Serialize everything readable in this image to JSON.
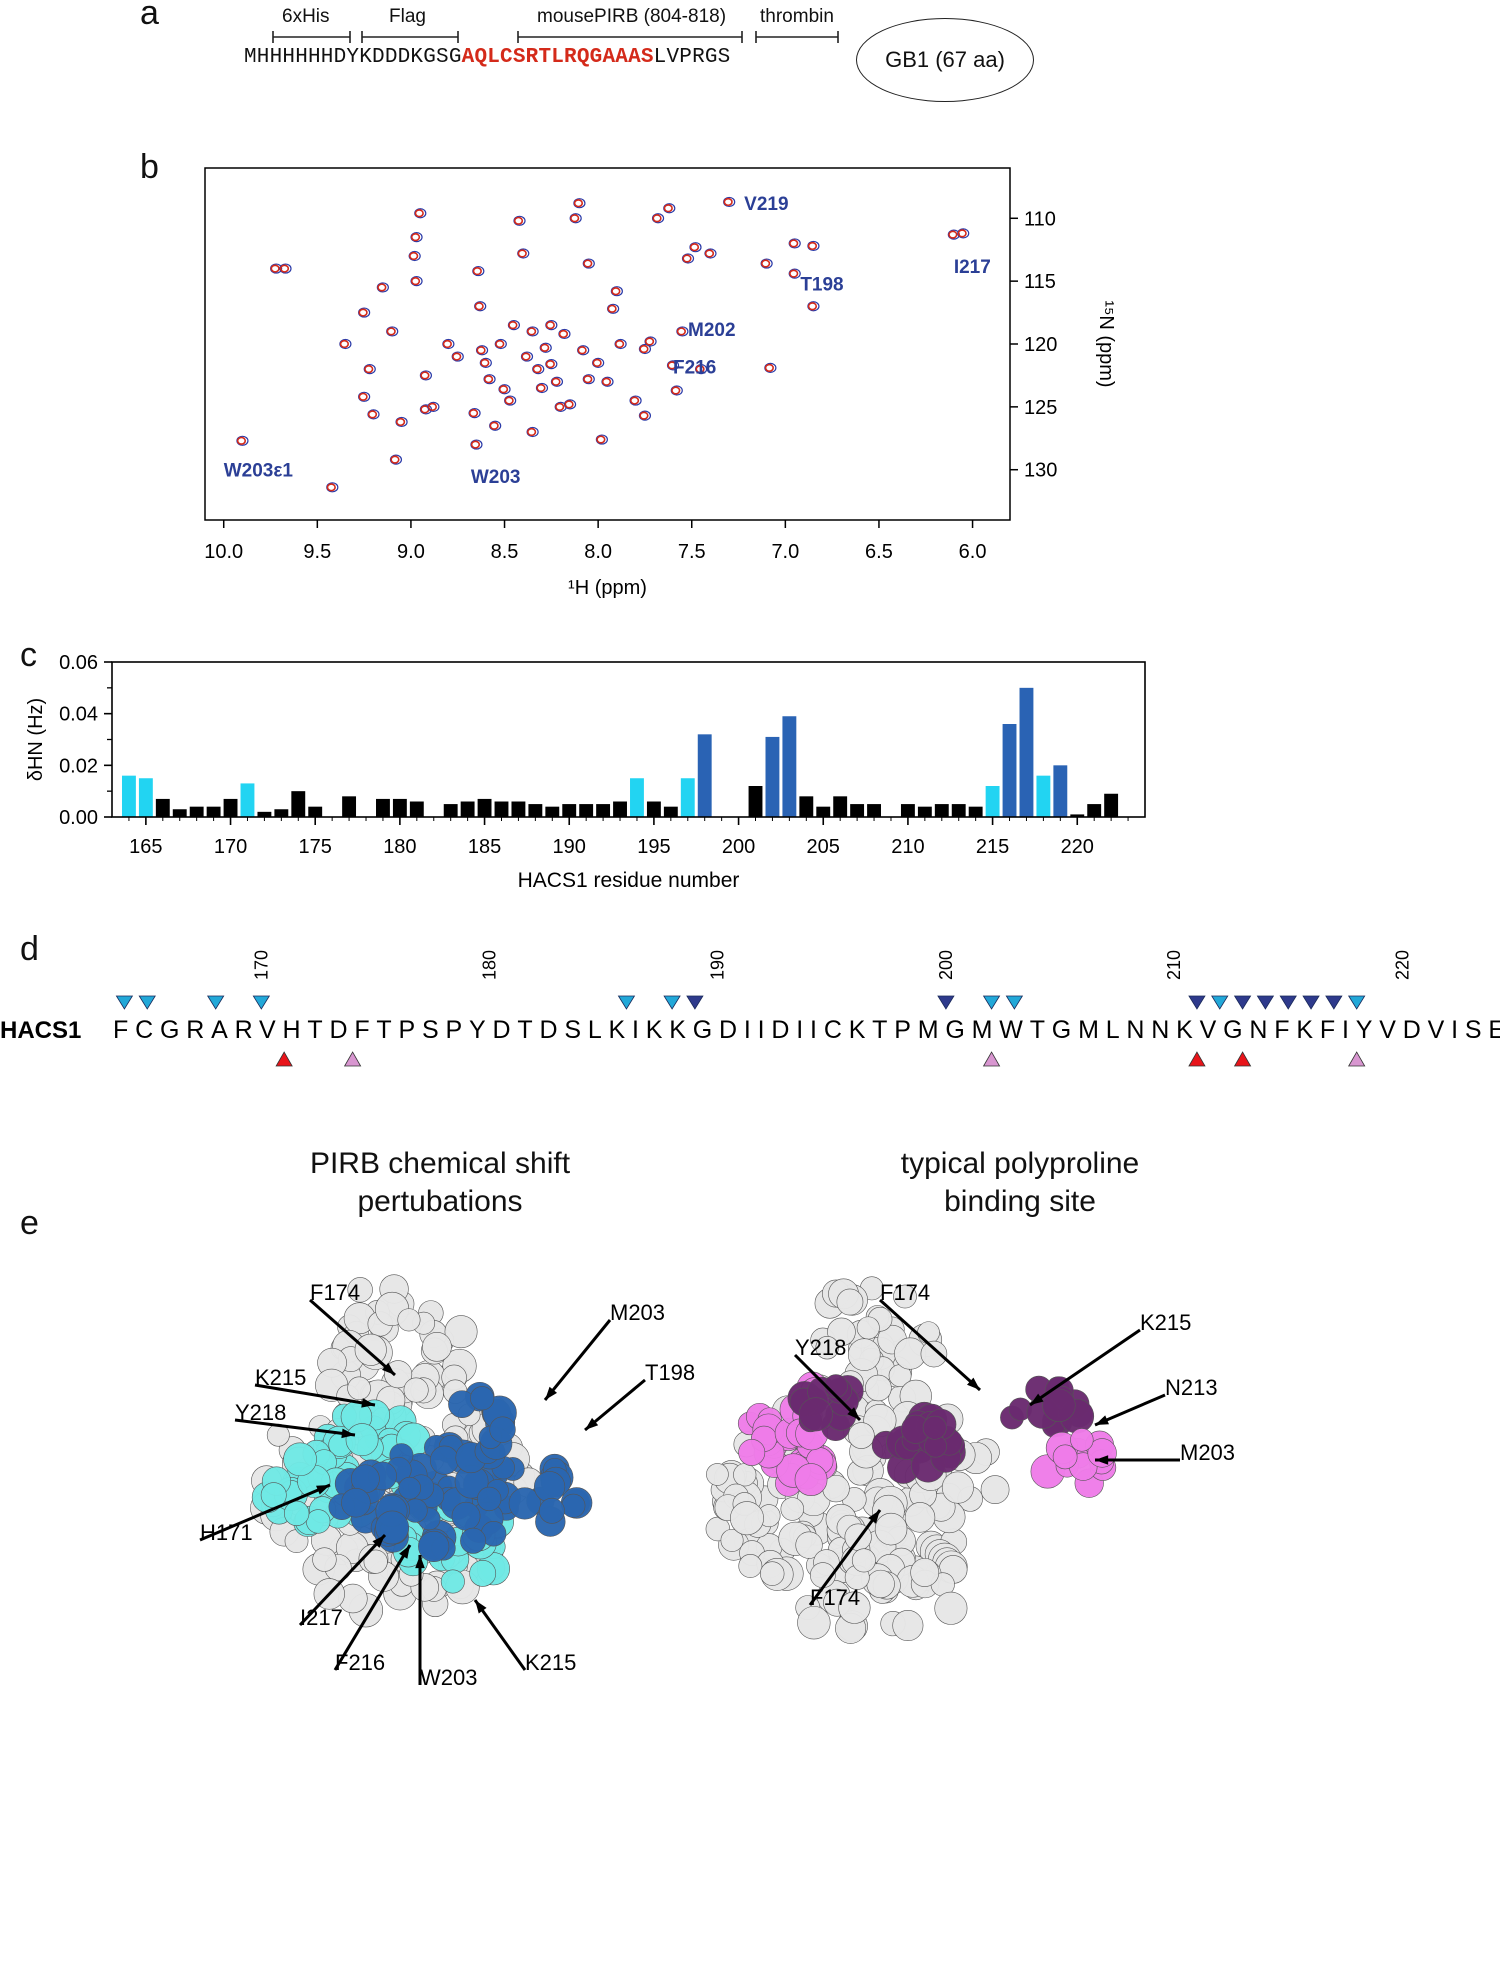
{
  "panels": {
    "a": "a",
    "b": "b",
    "c": "c",
    "d": "d",
    "e": "e"
  },
  "panel_a": {
    "tags": [
      "6xHis",
      "Flag",
      "mousePIRB (804-818)",
      "thrombin"
    ],
    "seq_prefix": "MHHHHHHDYKDDDKGSG",
    "seq_highlight": "AQLCSRTLRQGAAAS",
    "seq_suffix": "LVPRGS",
    "gb1_label": "GB1 (67 aa)",
    "highlight_color": "#d42a1a"
  },
  "panel_b": {
    "type": "scatter",
    "xlabel": "¹H (ppm)",
    "ylabel": "¹⁵N (ppm)",
    "xlim": [
      10.1,
      5.8
    ],
    "ylim": [
      134,
      106
    ],
    "xticks": [
      "10.0",
      "9.5",
      "9.0",
      "8.5",
      "8.0",
      "7.5",
      "7.0",
      "6.5",
      "6.0"
    ],
    "yticks": [
      "110",
      "115",
      "120",
      "125",
      "130"
    ],
    "annotations": [
      "V219",
      "I217",
      "T198",
      "M202",
      "F216",
      "W203ε1",
      "W203"
    ],
    "colors": {
      "ref": "#2a3aa8",
      "bound": "#d42a1a",
      "label": "#2b3f96"
    }
  },
  "chart_data": {
    "type": "bar",
    "xlabel": "HACS1 residue number",
    "ylabel": "δHN (Hz)",
    "ylim": [
      0,
      0.06
    ],
    "xlim": [
      163,
      224
    ],
    "yticks": [
      "0.00",
      "0.02",
      "0.04",
      "0.06"
    ],
    "xticks": [
      "165",
      "170",
      "175",
      "180",
      "185",
      "190",
      "195",
      "200",
      "205",
      "210",
      "215",
      "220"
    ],
    "colors": {
      "black": "#000000",
      "cyan": "#22d4f2",
      "blue": "#2a63b4"
    },
    "residues": [
      164,
      165,
      166,
      167,
      168,
      169,
      170,
      171,
      172,
      173,
      174,
      175,
      177,
      179,
      180,
      181,
      183,
      184,
      185,
      186,
      187,
      188,
      189,
      190,
      191,
      192,
      193,
      194,
      195,
      196,
      197,
      198,
      201,
      202,
      203,
      204,
      205,
      206,
      207,
      208,
      210,
      211,
      212,
      213,
      214,
      215,
      216,
      217,
      218,
      219,
      220,
      221,
      222
    ],
    "values": [
      0.016,
      0.015,
      0.007,
      0.003,
      0.004,
      0.004,
      0.007,
      0.013,
      0.002,
      0.003,
      0.01,
      0.004,
      0.008,
      0.007,
      0.007,
      0.006,
      0.005,
      0.006,
      0.007,
      0.006,
      0.006,
      0.005,
      0.004,
      0.005,
      0.005,
      0.005,
      0.006,
      0.015,
      0.006,
      0.004,
      0.015,
      0.032,
      0.012,
      0.031,
      0.039,
      0.008,
      0.004,
      0.008,
      0.005,
      0.005,
      0.005,
      0.004,
      0.005,
      0.005,
      0.004,
      0.012,
      0.036,
      0.05,
      0.016,
      0.02,
      0.001,
      0.005,
      0.009
    ],
    "bar_colors": [
      "cyan",
      "cyan",
      "black",
      "black",
      "black",
      "black",
      "black",
      "cyan",
      "black",
      "black",
      "black",
      "black",
      "black",
      "black",
      "black",
      "black",
      "black",
      "black",
      "black",
      "black",
      "black",
      "black",
      "black",
      "black",
      "black",
      "black",
      "black",
      "cyan",
      "black",
      "black",
      "cyan",
      "blue",
      "black",
      "blue",
      "blue",
      "black",
      "black",
      "black",
      "black",
      "black",
      "black",
      "black",
      "black",
      "black",
      "black",
      "cyan",
      "blue",
      "blue",
      "cyan",
      "blue",
      "black",
      "black",
      "black"
    ]
  },
  "panel_d": {
    "protein": "HACS1",
    "sequence": "FCGRARVHTDFTPSPYDTDSLKIKKGDIIDIICKTPMGMWTGMLNNKVGNFKFIYVDVISE",
    "start": 164,
    "numbers": [
      "170",
      "180",
      "190",
      "200",
      "210",
      "220"
    ],
    "down_cyan": [
      164,
      165,
      168,
      170,
      186,
      188,
      202,
      203,
      212,
      218
    ],
    "down_navy": [
      189,
      200,
      211,
      213,
      214,
      215,
      216,
      217
    ],
    "up_red": [
      171,
      211,
      213
    ],
    "up_pink": [
      174,
      202,
      218
    ],
    "colors": {
      "cyan": "#22a8d8",
      "navy": "#2e3a8c",
      "red": "#e8141a",
      "pink": "#d896d0"
    }
  },
  "panel_e": {
    "left_title": [
      "PIRB chemical shift",
      "pertubations"
    ],
    "right_title": [
      "typical polyproline",
      "binding site"
    ],
    "left_labels": [
      "F174",
      "K215",
      "Y218",
      "H171",
      "I217",
      "F216",
      "W203",
      "K215",
      "T198",
      "M203"
    ],
    "right_labels": [
      "F174",
      "Y218",
      "F174",
      "K215",
      "N213",
      "M203"
    ],
    "colors": {
      "white": "#e6e6e6",
      "cyan": "#6fe8e4",
      "blue": "#2a66b0",
      "magenta": "#ee7ce8",
      "purple": "#6a2a70"
    }
  }
}
